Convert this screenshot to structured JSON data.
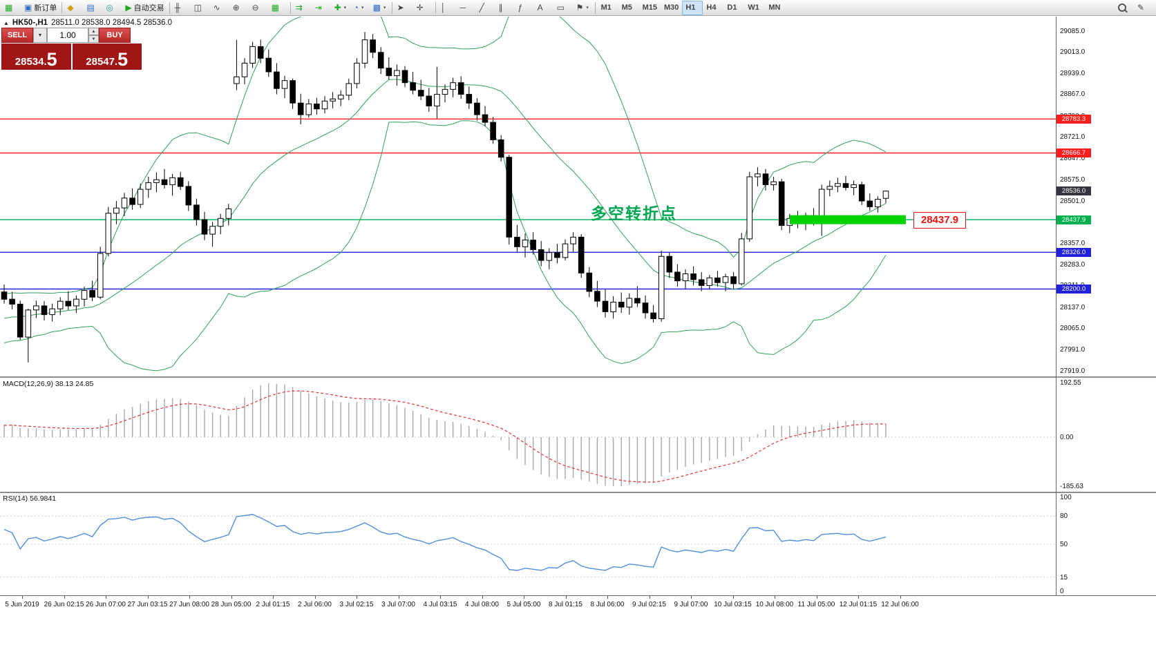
{
  "toolbar": {
    "items": [
      {
        "type": "btn",
        "name": "new-chart",
        "icon": "▦",
        "icon_class": "green"
      },
      {
        "type": "btn",
        "name": "new-order",
        "icon": "▣",
        "icon_class": "blue",
        "label": "新订单"
      },
      {
        "type": "sep"
      },
      {
        "type": "btn",
        "name": "profiles",
        "icon": "◆",
        "icon_class": "gold"
      },
      {
        "type": "btn",
        "name": "data-window",
        "icon": "▤",
        "icon_class": "blue"
      },
      {
        "type": "btn",
        "name": "navigator",
        "icon": "◎",
        "icon_class": "teal"
      },
      {
        "type": "btn",
        "name": "autotrading",
        "icon": "▶",
        "icon_class": "green",
        "label": "自动交易"
      },
      {
        "type": "sep"
      },
      {
        "type": "btn",
        "name": "bar-chart-mode",
        "icon": "╫"
      },
      {
        "type": "btn",
        "name": "candlestick-mode",
        "icon": "◫"
      },
      {
        "type": "btn",
        "name": "line-chart-mode",
        "icon": "∿"
      },
      {
        "type": "btn",
        "name": "zoom-in",
        "icon": "⊕"
      },
      {
        "type": "btn",
        "name": "zoom-out",
        "icon": "⊖"
      },
      {
        "type": "btn",
        "name": "tile-windows",
        "icon": "▦",
        "icon_class": "green"
      },
      {
        "type": "sep"
      },
      {
        "type": "btn",
        "name": "auto-scroll",
        "icon": "⇉",
        "icon_class": "green"
      },
      {
        "type": "btn",
        "name": "chart-shift",
        "icon": "⇥",
        "icon_class": "green"
      },
      {
        "type": "btn",
        "name": "indicators-list",
        "icon": "✚",
        "icon_class": "green",
        "dropdown": true
      },
      {
        "type": "btn",
        "name": "periods",
        "icon": "◔",
        "icon_class": "blue",
        "dropdown": true
      },
      {
        "type": "btn",
        "name": "templates",
        "icon": "▩",
        "icon_class": "blue",
        "dropdown": true
      },
      {
        "type": "sep"
      },
      {
        "type": "btn",
        "name": "cursor",
        "icon": "➤"
      },
      {
        "type": "btn",
        "name": "crosshair",
        "icon": "✛"
      },
      {
        "type": "sep"
      },
      {
        "type": "btn",
        "name": "vertical-line",
        "icon": "│"
      },
      {
        "type": "btn",
        "name": "horizontal-line",
        "icon": "─"
      },
      {
        "type": "btn",
        "name": "trendline",
        "icon": "╱"
      },
      {
        "type": "btn",
        "name": "equidistant-channel",
        "icon": "∥"
      },
      {
        "type": "btn",
        "name": "fibonacci-retracement",
        "icon": "ƒ"
      },
      {
        "type": "btn",
        "name": "text",
        "icon": "A"
      },
      {
        "type": "btn",
        "name": "text-label",
        "icon": "▭"
      },
      {
        "type": "btn",
        "name": "arrows",
        "icon": "⚑",
        "dropdown": true
      },
      {
        "type": "sep"
      },
      {
        "type": "tf",
        "name": "tf-m1",
        "label": "M1"
      },
      {
        "type": "tf",
        "name": "tf-m5",
        "label": "M5"
      },
      {
        "type": "tf",
        "name": "tf-m15",
        "label": "M15"
      },
      {
        "type": "tf",
        "name": "tf-m30",
        "label": "M30"
      },
      {
        "type": "tf",
        "name": "tf-h1",
        "label": "H1",
        "active": true
      },
      {
        "type": "tf",
        "name": "tf-h4",
        "label": "H4"
      },
      {
        "type": "tf",
        "name": "tf-d1",
        "label": "D1"
      },
      {
        "type": "tf",
        "name": "tf-w1",
        "label": "W1"
      },
      {
        "type": "tf",
        "name": "tf-mn",
        "label": "MN"
      }
    ],
    "right_items": [
      {
        "type": "btn",
        "name": "search",
        "icon": "mag"
      },
      {
        "type": "btn",
        "name": "quick-edit",
        "icon": "✎"
      }
    ]
  },
  "header": {
    "toggle_icon": "▲",
    "symbol_period": "HK50-,H1",
    "ohlc": "28511.0 28538.0 28494.5 28536.0"
  },
  "trade_panel": {
    "sell_label": "SELL",
    "buy_label": "BUY",
    "volume": "1.00",
    "sell_price_main": "28534.",
    "sell_price_big": "5",
    "buy_price_main": "28547.",
    "buy_price_big": "5"
  },
  "macd_panel": {
    "title": "MACD(12,26,9)",
    "value": "38.13",
    "signal_value": "24.85",
    "scale_top": "192.55",
    "scale_zero": "0.00",
    "scale_bottom": "-185.63"
  },
  "rsi_panel": {
    "title": "RSI(14)",
    "value": "56.9841",
    "scale_labels": [
      "100",
      "80",
      "50",
      "15",
      "0"
    ]
  },
  "chart_data": {
    "type": "candlestick",
    "symbol": "HK50-",
    "timeframe": "H1",
    "ohlc_display": {
      "open": "28511.0",
      "high": "28538.0",
      "low": "28494.5",
      "close": "28536.0"
    },
    "price_axis_ticks": [
      "29085.0",
      "29013.0",
      "28939.0",
      "28867.0",
      "28793.0",
      "28721.0",
      "28647.0",
      "28575.0",
      "28501.0",
      "28429.0",
      "28357.0",
      "28283.0",
      "28211.0",
      "28137.0",
      "28065.0",
      "27991.0",
      "27919.0"
    ],
    "time_axis_labels": [
      "5 Jun 2019",
      "26 Jun 02:15",
      "26 Jun 07:00",
      "27 Jun 03:15",
      "27 Jun 08:00",
      "28 Jun 05:00",
      "2 Jul 01:15",
      "2 Jul 06:00",
      "3 Jul 02:15",
      "3 Jul 07:00",
      "4 Jul 03:15",
      "4 Jul 08:00",
      "5 Jul 05:00",
      "8 Jul 01:15",
      "8 Jul 06:00",
      "9 Jul 02:15",
      "9 Jul 07:00",
      "10 Jul 03:15",
      "10 Jul 08:00",
      "11 Jul 05:00",
      "12 Jul 01:15",
      "12 Jul 06:00"
    ],
    "horizontal_levels": [
      {
        "price": 28783.3,
        "label": "28783.3",
        "color": "#ff1d1d",
        "line": true
      },
      {
        "price": 28666.7,
        "label": "28666.7",
        "color": "#ff1d1d",
        "line": true
      },
      {
        "price": 28536.0,
        "label": "28536.0",
        "color": "#35353f",
        "line": false
      },
      {
        "price": 28437.9,
        "label": "28437.9",
        "color": "#00b050",
        "line": true
      },
      {
        "price": 28326.0,
        "label": "28326.0",
        "color": "#2222dd",
        "line": true
      },
      {
        "price": 28200.0,
        "label": "28200.0",
        "color": "#2222dd",
        "line": true
      }
    ],
    "highlight_bar": {
      "price": 28437.9,
      "color": "#00d300"
    },
    "annotation": {
      "text": "多空转折点",
      "color": "#00a651"
    },
    "price_callout": {
      "text": "28437.9",
      "color": "#ee1111"
    },
    "indicators": {
      "bollinger": {
        "period": 20,
        "deviation": 2,
        "color": "#2fa05c"
      },
      "macd": {
        "params": "12,26,9",
        "value": 38.13,
        "signal": 24.85,
        "scale_max": 192.55,
        "scale_min": -185.63,
        "histogram_color": "#a8a8a8",
        "signal_color": "#e03535"
      },
      "rsi": {
        "period": 14,
        "value": 56.9841,
        "levels": [
          100,
          80,
          50,
          15,
          0
        ],
        "color": "#4f8fdb"
      }
    },
    "candles": [
      [
        28190,
        28215,
        28150,
        28165
      ],
      [
        28165,
        28190,
        28130,
        28148
      ],
      [
        28148,
        28160,
        28025,
        28035
      ],
      [
        28035,
        28132,
        27948,
        28128
      ],
      [
        28128,
        28160,
        28100,
        28142
      ],
      [
        28142,
        28158,
        28092,
        28112
      ],
      [
        28112,
        28150,
        28088,
        28132
      ],
      [
        28132,
        28172,
        28110,
        28158
      ],
      [
        28158,
        28192,
        28128,
        28142
      ],
      [
        28142,
        28178,
        28118,
        28165
      ],
      [
        28165,
        28208,
        28140,
        28195
      ],
      [
        28195,
        28228,
        28158,
        28172
      ],
      [
        28172,
        28345,
        28165,
        28322
      ],
      [
        28322,
        28482,
        28312,
        28460
      ],
      [
        28460,
        28502,
        28422,
        28478
      ],
      [
        28478,
        28530,
        28450,
        28512
      ],
      [
        28512,
        28545,
        28472,
        28490
      ],
      [
        28490,
        28562,
        28478,
        28542
      ],
      [
        28542,
        28585,
        28512,
        28565
      ],
      [
        28565,
        28600,
        28532,
        28575
      ],
      [
        28575,
        28612,
        28545,
        28558
      ],
      [
        28558,
        28595,
        28520,
        28582
      ],
      [
        28582,
        28602,
        28540,
        28552
      ],
      [
        28552,
        28570,
        28468,
        28488
      ],
      [
        28488,
        28510,
        28418,
        28438
      ],
      [
        28438,
        28465,
        28368,
        28388
      ],
      [
        28388,
        28430,
        28345,
        28415
      ],
      [
        28415,
        28458,
        28388,
        28442
      ],
      [
        28442,
        28492,
        28418,
        28475
      ],
      [
        28905,
        29055,
        28882,
        28928
      ],
      [
        28928,
        28992,
        28902,
        28975
      ],
      [
        28975,
        29048,
        28958,
        29032
      ],
      [
        29032,
        29056,
        28975,
        28992
      ],
      [
        28992,
        29022,
        28928,
        28945
      ],
      [
        28945,
        28975,
        28868,
        28888
      ],
      [
        28888,
        28932,
        28855,
        28915
      ],
      [
        28915,
        28922,
        28818,
        28838
      ],
      [
        28838,
        28870,
        28765,
        28798
      ],
      [
        28798,
        28852,
        28788,
        28835
      ],
      [
        28835,
        28856,
        28798,
        28818
      ],
      [
        28818,
        28862,
        28802,
        28845
      ],
      [
        28845,
        28876,
        28820,
        28852
      ],
      [
        28852,
        28882,
        28828,
        28865
      ],
      [
        28865,
        28922,
        28848,
        28905
      ],
      [
        28905,
        28992,
        28888,
        28975
      ],
      [
        28975,
        29082,
        28958,
        29055
      ],
      [
        29055,
        29075,
        28992,
        29012
      ],
      [
        29012,
        29030,
        28938,
        28958
      ],
      [
        28958,
        28995,
        28918,
        28932
      ],
      [
        28932,
        28970,
        28898,
        28950
      ],
      [
        28950,
        28965,
        28892,
        28908
      ],
      [
        28908,
        28945,
        28868,
        28882
      ],
      [
        28882,
        28918,
        28848,
        28862
      ],
      [
        28862,
        28890,
        28808,
        28828
      ],
      [
        28828,
        28962,
        28785,
        28868
      ],
      [
        28868,
        28902,
        28840,
        28885
      ],
      [
        28885,
        28925,
        28858,
        28908
      ],
      [
        28908,
        28930,
        28852,
        28868
      ],
      [
        28868,
        28895,
        28818,
        28838
      ],
      [
        28838,
        28855,
        28778,
        28798
      ],
      [
        28798,
        28828,
        28758,
        28772
      ],
      [
        28772,
        28790,
        28698,
        28712
      ],
      [
        28712,
        28728,
        28638,
        28652
      ],
      [
        28652,
        28660,
        28352,
        28378
      ],
      [
        28378,
        28420,
        28328,
        28345
      ],
      [
        28345,
        28390,
        28308,
        28368
      ],
      [
        28368,
        28395,
        28318,
        28335
      ],
      [
        28335,
        28365,
        28278,
        28298
      ],
      [
        28298,
        28340,
        28268,
        28325
      ],
      [
        28325,
        28355,
        28288,
        28308
      ],
      [
        28308,
        28370,
        28298,
        28355
      ],
      [
        28355,
        28395,
        28328,
        28378
      ],
      [
        28378,
        28388,
        28238,
        28255
      ],
      [
        28255,
        28275,
        28172,
        28192
      ],
      [
        28192,
        28228,
        28138,
        28158
      ],
      [
        28158,
        28198,
        28102,
        28122
      ],
      [
        28122,
        28175,
        28098,
        28155
      ],
      [
        28155,
        28188,
        28118,
        28138
      ],
      [
        28138,
        28185,
        28112,
        28168
      ],
      [
        28168,
        28210,
        28138,
        28152
      ],
      [
        28152,
        28178,
        28098,
        28118
      ],
      [
        28118,
        28145,
        28085,
        28098
      ],
      [
        28098,
        28332,
        28088,
        28312
      ],
      [
        28312,
        28325,
        28238,
        28258
      ],
      [
        28258,
        28285,
        28208,
        28228
      ],
      [
        28228,
        28268,
        28198,
        28252
      ],
      [
        28252,
        28278,
        28212,
        28232
      ],
      [
        28232,
        28258,
        28192,
        28212
      ],
      [
        28212,
        28248,
        28198,
        28238
      ],
      [
        28238,
        28262,
        28208,
        28222
      ],
      [
        28222,
        28252,
        28192,
        28242
      ],
      [
        28242,
        28258,
        28202,
        28218
      ],
      [
        28218,
        28392,
        28212,
        28372
      ],
      [
        28372,
        28602,
        28362,
        28585
      ],
      [
        28585,
        28618,
        28552,
        28595
      ],
      [
        28595,
        28612,
        28538,
        28558
      ],
      [
        28558,
        28585,
        28538,
        28568
      ],
      [
        28568,
        28578,
        28402,
        28418
      ],
      [
        28418,
        28458,
        28392,
        28442
      ],
      [
        28442,
        28468,
        28408,
        28428
      ],
      [
        28428,
        28462,
        28402,
        28452
      ],
      [
        28452,
        28478,
        28418,
        28438
      ],
      [
        28438,
        28558,
        28382,
        28542
      ],
      [
        28542,
        28572,
        28518,
        28552
      ],
      [
        28552,
        28582,
        28532,
        28562
      ],
      [
        28562,
        28588,
        28538,
        28548
      ],
      [
        28548,
        28572,
        28522,
        28558
      ],
      [
        28558,
        28568,
        28488,
        28502
      ],
      [
        28502,
        28528,
        28468,
        28482
      ],
      [
        28482,
        28518,
        28462,
        28508
      ],
      [
        28511,
        28538,
        28494.5,
        28536
      ]
    ]
  }
}
